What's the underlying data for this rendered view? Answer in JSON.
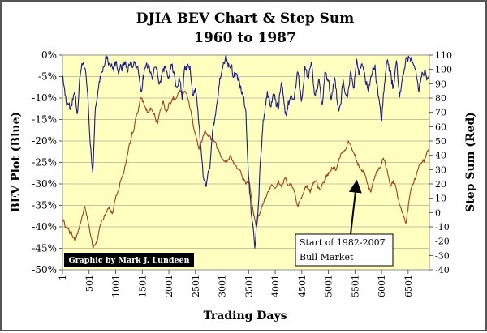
{
  "chart_data": {
    "type": "line",
    "title": "DJIA BEV Chart & Step Sum",
    "subtitle": "1960 to 1987",
    "xlabel": "Trading Days",
    "ylabel_left": "BEV Plot (Blue)",
    "ylabel_right": "Step Sum (Red)",
    "x_range": [
      1,
      6900
    ],
    "x_ticks": [
      1,
      501,
      1001,
      1501,
      2001,
      2501,
      3001,
      3501,
      4001,
      4501,
      5001,
      5501,
      6001,
      6501
    ],
    "x_tick_labels": [
      "1",
      "501",
      "1001",
      "1501",
      "2001",
      "2501",
      "3001",
      "3501",
      "4001",
      "4501",
      "5001",
      "5501",
      "6001",
      "6501"
    ],
    "y_left_range": [
      -50,
      0
    ],
    "y_left_ticks": [
      0,
      -5,
      -10,
      -15,
      -20,
      -25,
      -30,
      -35,
      -40,
      -45,
      -50
    ],
    "y_left_tick_labels": [
      "0%",
      "-5%",
      "-10%",
      "-15%",
      "-20%",
      "-25%",
      "-30%",
      "-35%",
      "-40%",
      "-45%",
      "-50%"
    ],
    "y_right_range": [
      -40,
      110
    ],
    "y_right_ticks": [
      110,
      100,
      90,
      80,
      70,
      60,
      50,
      40,
      30,
      20,
      10,
      0,
      -10,
      -20,
      -30,
      -40
    ],
    "y_right_tick_labels": [
      "110",
      "100",
      "90",
      "80",
      "70",
      "60",
      "50",
      "40",
      "30",
      "20",
      "10",
      "0",
      "-10",
      "-20",
      "-30",
      "-40"
    ],
    "grid": "horizontal",
    "series": [
      {
        "name": "BEV Plot",
        "axis": "left",
        "color": "#1a1a8c",
        "x": [
          1,
          80,
          150,
          220,
          280,
          330,
          390,
          440,
          480,
          520,
          570,
          620,
          680,
          760,
          820,
          880,
          950,
          1000,
          1050,
          1100,
          1170,
          1230,
          1300,
          1360,
          1420,
          1480,
          1530,
          1580,
          1630,
          1680,
          1730,
          1780,
          1830,
          1880,
          1950,
          2000,
          2050,
          2100,
          2150,
          2200,
          2250,
          2300,
          2350,
          2400,
          2450,
          2500,
          2550,
          2600,
          2650,
          2700,
          2780,
          2840,
          2900,
          2960,
          3020,
          3080,
          3150,
          3210,
          3260,
          3320,
          3380,
          3450,
          3500,
          3560,
          3620,
          3680,
          3720,
          3780,
          3850,
          3920,
          3980,
          4050,
          4120,
          4200,
          4280,
          4350,
          4420,
          4500,
          4560,
          4620,
          4680,
          4750,
          4820,
          4880,
          4940,
          5000,
          5060,
          5120,
          5200,
          5280,
          5360,
          5420,
          5480,
          5530,
          5580,
          5640,
          5700,
          5760,
          5820,
          5880,
          5940,
          6000,
          6050,
          6100,
          6160,
          6220,
          6280,
          6340,
          6400,
          6460,
          6520,
          6580,
          6640,
          6700,
          6760,
          6820,
          6880
        ],
        "values": [
          -5,
          -11,
          -12,
          -8,
          -13,
          -5,
          -2,
          -4,
          -10,
          -20,
          -27,
          -12,
          -7,
          -3,
          0,
          -2,
          -3,
          -2,
          -3,
          -4,
          -2,
          -3,
          -2,
          -1,
          -3,
          -8,
          -4,
          -2,
          -3,
          -6,
          -3,
          -5,
          -7,
          -4,
          -3,
          -4,
          -2,
          -4,
          -7,
          -5,
          -9,
          -4,
          -2,
          -3,
          -10,
          -8,
          -13,
          -20,
          -29,
          -32,
          -25,
          -16,
          -12,
          -5,
          -2,
          0,
          -3,
          -5,
          -4,
          -6,
          -8,
          -14,
          -28,
          -38,
          -45,
          -36,
          -25,
          -15,
          -10,
          -12,
          -9,
          -13,
          -6,
          -14,
          -10,
          -12,
          -4,
          -10,
          -3,
          -6,
          -2,
          -10,
          -5,
          -12,
          -3,
          -6,
          -10,
          -5,
          -14,
          -6,
          -10,
          -3,
          -8,
          -2,
          -4,
          -2,
          -5,
          -8,
          -4,
          -2,
          -10,
          -15,
          -7,
          -2,
          -3,
          -8,
          -1,
          -9,
          -5,
          -2,
          0,
          -1,
          -3,
          -8,
          -4,
          -3,
          -6
        ]
      },
      {
        "name": "Step Sum",
        "axis": "right",
        "color": "#a0401c",
        "x": [
          1,
          60,
          120,
          180,
          240,
          300,
          360,
          420,
          470,
          530,
          580,
          640,
          700,
          760,
          820,
          880,
          940,
          1000,
          1060,
          1120,
          1180,
          1240,
          1300,
          1360,
          1420,
          1480,
          1540,
          1600,
          1660,
          1720,
          1780,
          1840,
          1900,
          1960,
          2020,
          2080,
          2140,
          2200,
          2260,
          2320,
          2380,
          2440,
          2500,
          2560,
          2620,
          2680,
          2740,
          2800,
          2860,
          2920,
          2980,
          3040,
          3100,
          3160,
          3220,
          3280,
          3340,
          3400,
          3460,
          3520,
          3580,
          3640,
          3700,
          3760,
          3820,
          3880,
          3940,
          4000,
          4060,
          4120,
          4180,
          4240,
          4300,
          4360,
          4420,
          4480,
          4540,
          4600,
          4660,
          4720,
          4780,
          4840,
          4900,
          4960,
          5020,
          5080,
          5140,
          5200,
          5260,
          5320,
          5380,
          5440,
          5500,
          5560,
          5620,
          5680,
          5740,
          5800,
          5860,
          5920,
          5980,
          6040,
          6100,
          6160,
          6220,
          6280,
          6340,
          6400,
          6460,
          6520,
          6580,
          6640,
          6700,
          6760,
          6820,
          6880
        ],
        "values": [
          -5,
          -10,
          -12,
          -15,
          -20,
          -12,
          -5,
          5,
          -5,
          -15,
          -25,
          -22,
          -10,
          -5,
          0,
          3,
          0,
          10,
          18,
          25,
          32,
          42,
          52,
          62,
          72,
          80,
          75,
          70,
          72,
          68,
          62,
          72,
          78,
          70,
          78,
          80,
          78,
          85,
          82,
          85,
          78,
          65,
          55,
          45,
          50,
          58,
          55,
          52,
          50,
          45,
          40,
          38,
          35,
          40,
          35,
          32,
          30,
          22,
          20,
          18,
          2,
          -8,
          0,
          5,
          10,
          15,
          20,
          18,
          22,
          18,
          25,
          18,
          20,
          15,
          5,
          10,
          15,
          20,
          15,
          20,
          20,
          15,
          20,
          25,
          28,
          32,
          30,
          36,
          42,
          45,
          50,
          45,
          40,
          35,
          30,
          28,
          20,
          15,
          22,
          28,
          32,
          38,
          30,
          20,
          22,
          15,
          5,
          0,
          -8,
          8,
          18,
          25,
          32,
          35,
          38,
          45
        ]
      }
    ],
    "annotations": [
      {
        "text": "Graphic by Mark J. Lundeen"
      },
      {
        "text": "Start of 1982-2007\nBull Market",
        "arrow_to": {
          "x": 5530,
          "y_right": 23
        }
      }
    ]
  }
}
